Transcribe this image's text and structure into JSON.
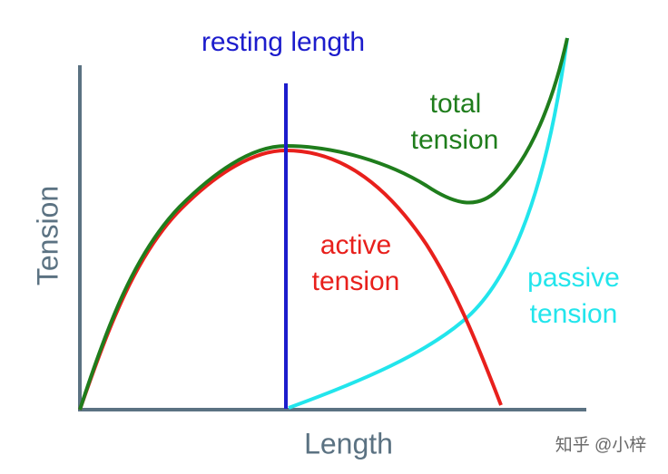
{
  "title": "resting length",
  "axes": {
    "y_label": "Tension",
    "x_label": "Length"
  },
  "curves": [
    {
      "label_lines": [
        "total",
        "tension"
      ]
    },
    {
      "label_lines": [
        "active",
        "tension"
      ]
    },
    {
      "label_lines": [
        "passive",
        "tension"
      ]
    }
  ],
  "watermark": "知乎 @小梓"
}
